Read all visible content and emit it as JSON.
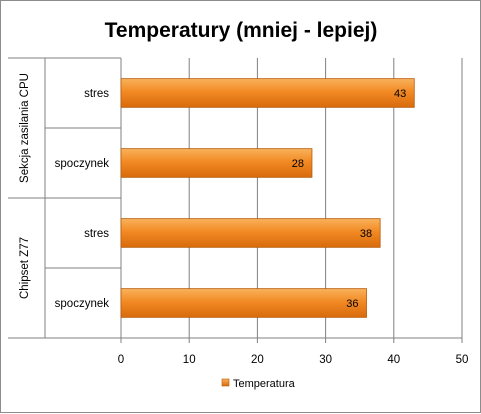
{
  "chart_data": {
    "type": "bar",
    "orientation": "horizontal",
    "title": "Temperatury (mniej - lepiej)",
    "groups": [
      {
        "name": "Sekcja zasilania CPU",
        "categories": [
          "stres",
          "spoczynek"
        ],
        "values": [
          43,
          28
        ]
      },
      {
        "name": "Chipset Z77",
        "categories": [
          "stres",
          "spoczynek"
        ],
        "values": [
          38,
          36
        ]
      }
    ],
    "series": [
      {
        "name": "Temperatura",
        "color": "#f28c28"
      }
    ],
    "xlim": [
      0,
      50
    ],
    "xticks": [
      "0",
      "10",
      "20",
      "30",
      "40",
      "50"
    ],
    "grid": true,
    "legend_position": "bottom",
    "data_labels": true
  }
}
